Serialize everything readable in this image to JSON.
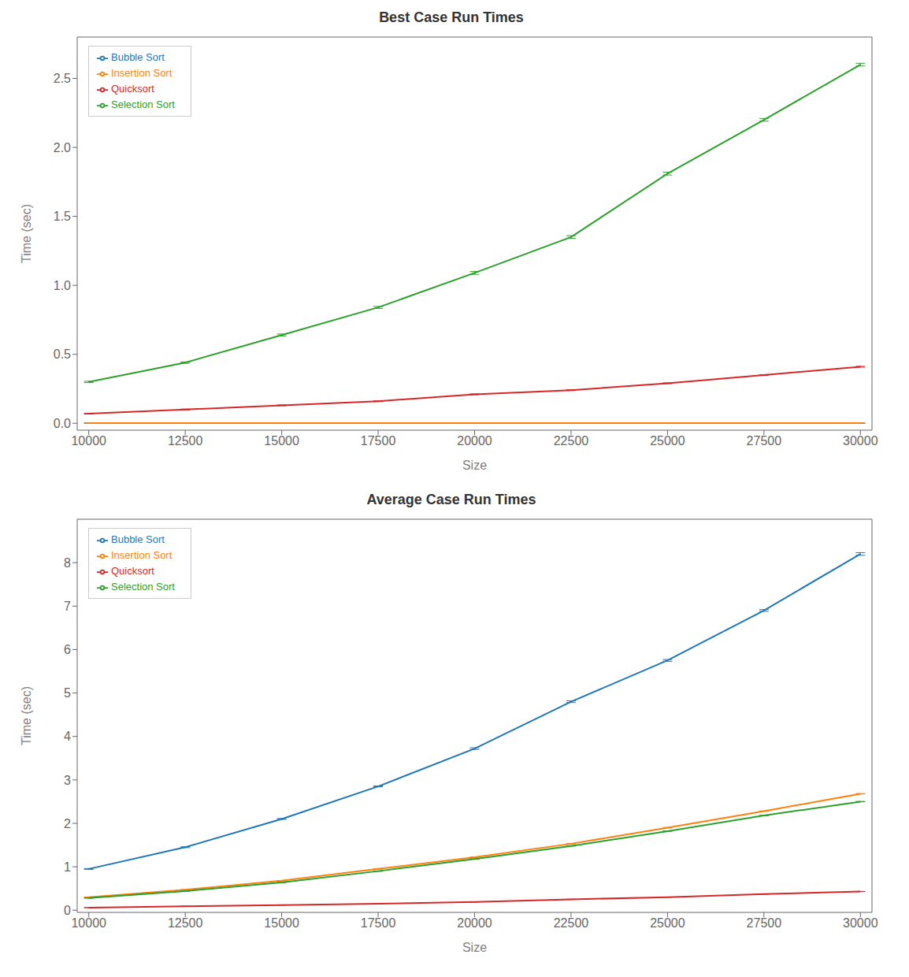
{
  "chart_data": [
    {
      "type": "line",
      "title": "Best Case Run Times",
      "xlabel": "Size",
      "ylabel": "Time (sec)",
      "x": [
        10000,
        12500,
        15000,
        17500,
        20000,
        22500,
        25000,
        27500,
        30000
      ],
      "xlim": [
        9700,
        30300
      ],
      "xticks": [
        10000,
        12500,
        15000,
        17500,
        20000,
        22500,
        25000,
        27500,
        30000
      ],
      "ylim": [
        -0.05,
        2.8
      ],
      "yticks": [
        {
          "value": 0,
          "label": "0.0"
        },
        0.5,
        {
          "value": 1,
          "label": "1.0"
        },
        1.5,
        {
          "value": 2,
          "label": "2.0"
        },
        2.5
      ],
      "grid": false,
      "legend": "upper left",
      "series": [
        {
          "name": "Bubble Sort",
          "color": "#1f77b4",
          "values": [
            0.001,
            0.001,
            0.001,
            0.001,
            0.001,
            0.001,
            0.001,
            0.001,
            0.001
          ],
          "errors": [
            0.001,
            0.001,
            0.001,
            0.001,
            0.001,
            0.001,
            0.001,
            0.001,
            0.001
          ]
        },
        {
          "name": "Insertion Sort",
          "color": "#ff7f0e",
          "values": [
            0.001,
            0.001,
            0.001,
            0.001,
            0.001,
            0.001,
            0.001,
            0.001,
            0.001
          ],
          "errors": [
            0.001,
            0.001,
            0.001,
            0.001,
            0.001,
            0.001,
            0.001,
            0.001,
            0.001
          ]
        },
        {
          "name": "Selection Sort",
          "color": "#2ca02c",
          "values": [
            0.3,
            0.44,
            0.64,
            0.84,
            1.09,
            1.35,
            1.81,
            2.2,
            2.6
          ],
          "errors": [
            0.005,
            0.005,
            0.007,
            0.007,
            0.01,
            0.01,
            0.01,
            0.01,
            0.01
          ]
        },
        {
          "name": "Quicksort",
          "color": "#d62728",
          "values": [
            0.07,
            0.1,
            0.13,
            0.16,
            0.21,
            0.24,
            0.29,
            0.35,
            0.41
          ],
          "errors": [
            0.003,
            0.003,
            0.003,
            0.003,
            0.003,
            0.003,
            0.003,
            0.003,
            0.003
          ]
        }
      ]
    },
    {
      "type": "line",
      "title": "Average Case Run Times",
      "xlabel": "Size",
      "ylabel": "Time (sec)",
      "x": [
        10000,
        12500,
        15000,
        17500,
        20000,
        22500,
        25000,
        27500,
        30000
      ],
      "xlim": [
        9700,
        30300
      ],
      "xticks": [
        10000,
        12500,
        15000,
        17500,
        20000,
        22500,
        25000,
        27500,
        30000
      ],
      "ylim": [
        -0.05,
        9.0
      ],
      "yticks": [
        0,
        1,
        2,
        3,
        4,
        5,
        6,
        7,
        8
      ],
      "grid": false,
      "legend": "upper left",
      "series": [
        {
          "name": "Bubble Sort",
          "color": "#1f77b4",
          "values": [
            0.95,
            1.45,
            2.1,
            2.85,
            3.72,
            4.8,
            5.75,
            6.9,
            8.2
          ],
          "errors": [
            0.01,
            0.01,
            0.01,
            0.01,
            0.02,
            0.02,
            0.02,
            0.02,
            0.03
          ]
        },
        {
          "name": "Insertion Sort",
          "color": "#ff7f0e",
          "values": [
            0.3,
            0.47,
            0.68,
            0.95,
            1.22,
            1.53,
            1.9,
            2.28,
            2.68
          ],
          "errors": [
            0.005,
            0.005,
            0.005,
            0.005,
            0.005,
            0.005,
            0.005,
            0.005,
            0.005
          ]
        },
        {
          "name": "Selection Sort",
          "color": "#2ca02c",
          "values": [
            0.28,
            0.44,
            0.64,
            0.9,
            1.18,
            1.48,
            1.82,
            2.18,
            2.5
          ],
          "errors": [
            0.005,
            0.005,
            0.005,
            0.005,
            0.005,
            0.005,
            0.005,
            0.005,
            0.005
          ]
        },
        {
          "name": "Quicksort",
          "color": "#d62728",
          "values": [
            0.06,
            0.09,
            0.12,
            0.15,
            0.19,
            0.25,
            0.3,
            0.37,
            0.43
          ],
          "errors": [
            0.003,
            0.003,
            0.003,
            0.003,
            0.003,
            0.003,
            0.003,
            0.003,
            0.003
          ]
        }
      ]
    }
  ]
}
